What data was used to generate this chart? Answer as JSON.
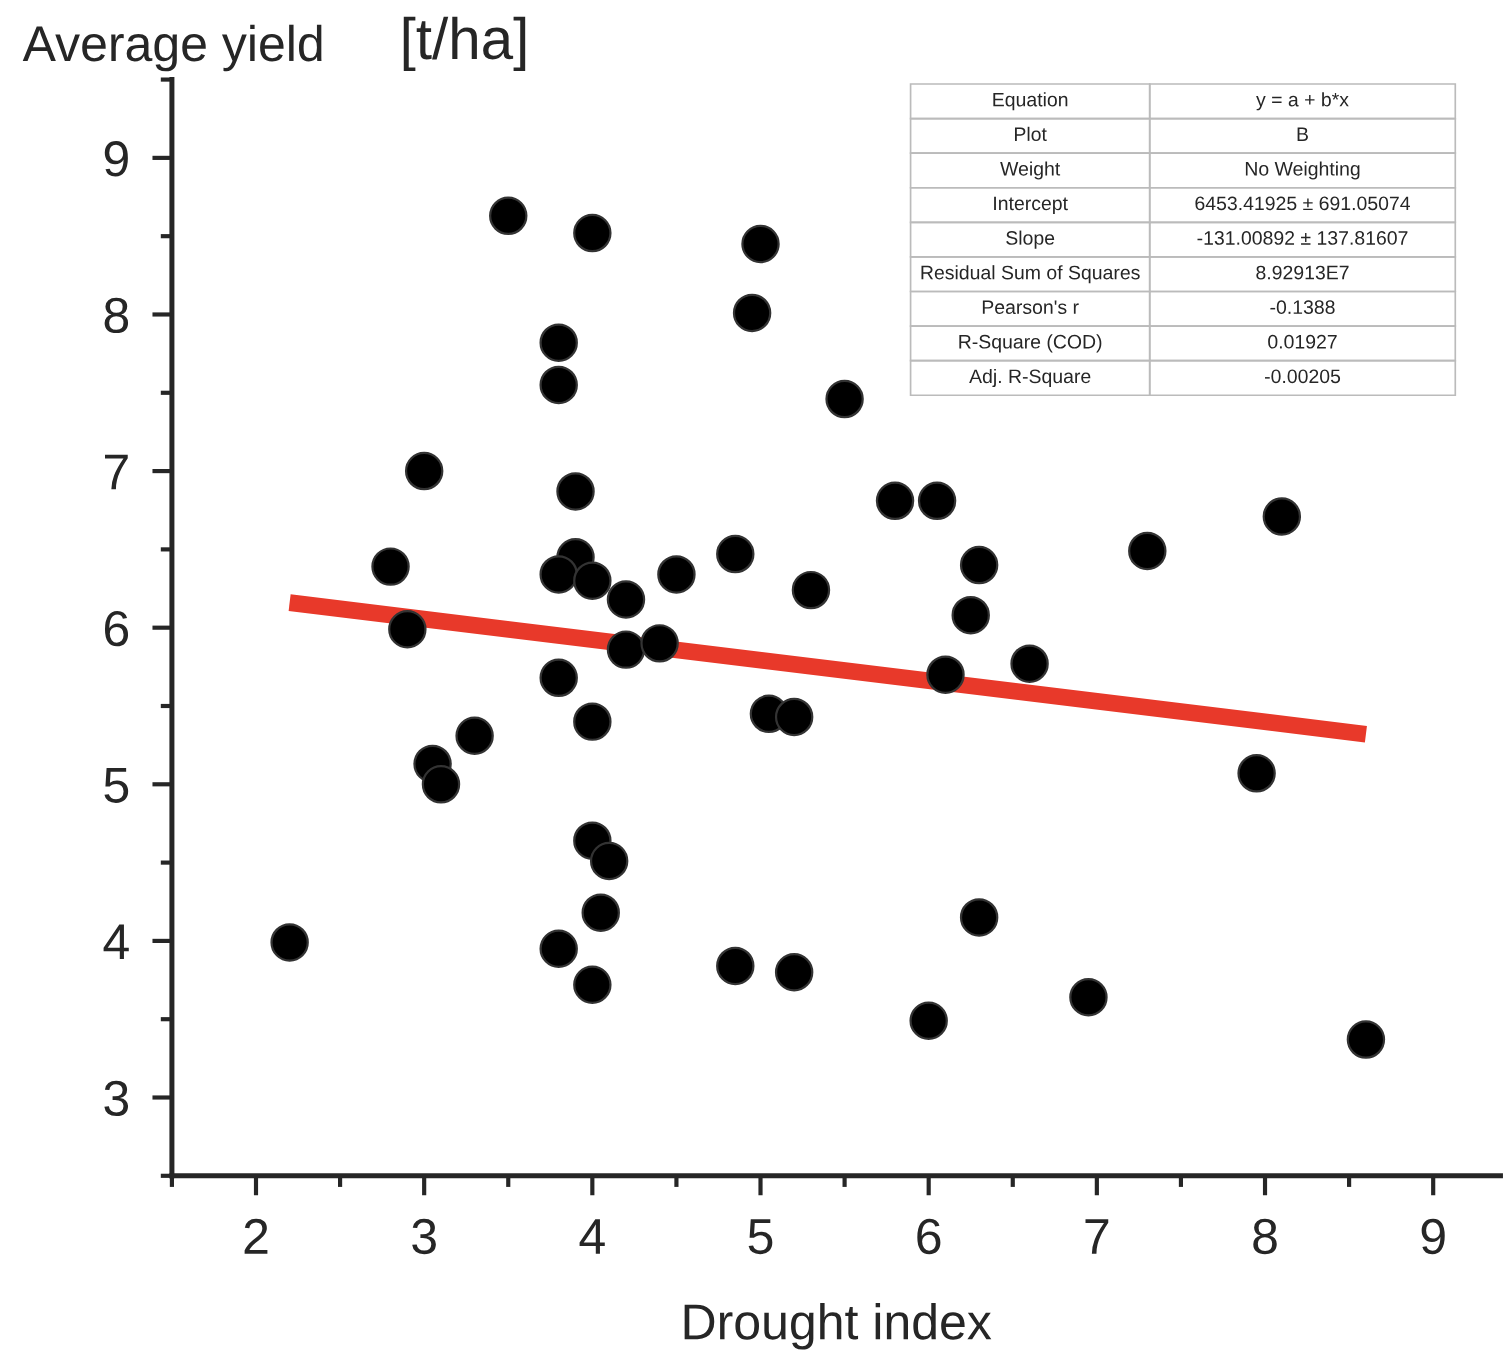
{
  "chart_data": {
    "type": "scatter",
    "xlabel": "Drought index",
    "ylabel": "Average yield",
    "annotations": [
      "[t/ha]",
      "Equation",
      "y = a + b*x",
      "Plot",
      "B",
      "Weight",
      "No Weighting",
      "Intercept",
      "6453.41925 ± 691.05074",
      "Slope",
      "-131.00892 ± 137.81607",
      "Residual Sum of Squares",
      "8.92913E7",
      "Pearson's r",
      "-0.1388",
      "R-Square (COD)",
      "0.01927",
      "Adj. R-Square",
      "-0.00205"
    ],
    "xlim": [
      1.5,
      9.4
    ],
    "ylim": [
      2.5,
      9.5
    ],
    "xticks": [
      2,
      3,
      4,
      5,
      6,
      7,
      8,
      9
    ],
    "yticks": [
      3,
      4,
      5,
      6,
      7,
      8,
      9
    ],
    "grid": false,
    "series": [
      {
        "color": "#000000",
        "marker": "circle",
        "x": [
          3.5,
          4.0,
          5.0,
          4.95,
          3.8,
          3.8,
          5.5,
          3.0,
          3.9,
          2.8,
          3.9,
          3.8,
          4.0,
          4.5,
          4.85,
          5.3,
          4.2,
          2.9,
          4.2,
          4.4,
          3.8,
          4.0,
          5.05,
          5.2,
          3.3,
          3.05,
          3.1,
          4.0,
          4.1,
          4.05,
          2.2,
          3.8,
          4.0,
          4.85,
          5.2,
          5.8,
          6.05,
          8.1,
          7.3,
          6.3,
          6.25,
          6.6,
          6.1,
          7.95,
          6.3,
          6.95,
          6.0,
          8.6
        ],
        "values": [
          8.63,
          8.52,
          8.45,
          8.01,
          7.82,
          7.55,
          7.46,
          7.0,
          6.87,
          6.39,
          6.45,
          6.34,
          6.3,
          6.34,
          6.47,
          6.24,
          6.18,
          5.99,
          5.86,
          5.9,
          5.68,
          5.4,
          5.45,
          5.43,
          5.31,
          5.13,
          5.0,
          4.64,
          4.51,
          4.18,
          3.99,
          3.95,
          3.72,
          3.84,
          3.8,
          6.81,
          6.81,
          6.71,
          6.49,
          6.4,
          6.08,
          5.77,
          5.7,
          5.07,
          4.15,
          3.64,
          3.49,
          3.37
        ]
      },
      {
        "type": "line",
        "color": "#e8392a",
        "x": [
          2.2,
          8.6
        ],
        "values": [
          6.16,
          5.32
        ]
      }
    ]
  }
}
